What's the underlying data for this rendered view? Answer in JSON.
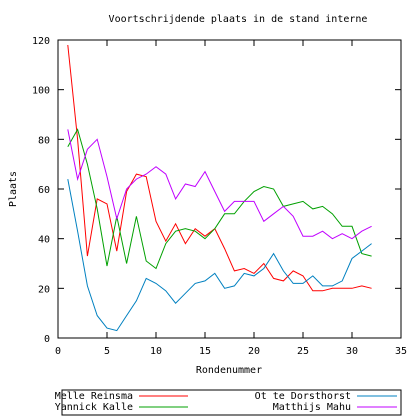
{
  "chart_data": {
    "type": "line",
    "title": "Voortschrijdende plaats in de stand interne",
    "xlabel": "Rondenummer",
    "ylabel": "Plaats",
    "xlim": [
      0,
      35
    ],
    "ylim": [
      0,
      120
    ],
    "xticks": [
      0,
      5,
      10,
      15,
      20,
      25,
      30,
      35
    ],
    "yticks": [
      0,
      20,
      40,
      60,
      80,
      100,
      120
    ],
    "grid": false,
    "legend_position": "bottom",
    "x": [
      1,
      2,
      3,
      4,
      5,
      6,
      7,
      8,
      9,
      10,
      11,
      12,
      13,
      14,
      15,
      16,
      17,
      18,
      19,
      20,
      21,
      22,
      23,
      24,
      25,
      26,
      27,
      28,
      29,
      30,
      31,
      32
    ],
    "series": [
      {
        "name": "Melle Reinsma",
        "color": "#ff0000",
        "values": [
          118,
          80,
          33,
          56,
          54,
          35,
          59,
          66,
          65,
          47,
          39,
          46,
          38,
          44,
          41,
          44,
          36,
          27,
          28,
          26,
          30,
          24,
          23,
          27,
          25,
          19,
          19,
          20,
          20,
          20,
          21,
          20
        ]
      },
      {
        "name": "Yannick Kalle",
        "color": "#00a000",
        "values": [
          77,
          84,
          70,
          52,
          29,
          49,
          30,
          49,
          31,
          28,
          38,
          43,
          44,
          43,
          40,
          44,
          50,
          50,
          55,
          59,
          61,
          60,
          53,
          54,
          55,
          52,
          53,
          50,
          45,
          45,
          34,
          33
        ]
      },
      {
        "name": "Ot te Dorsthorst",
        "color": "#0080c0",
        "values": [
          64,
          43,
          21,
          9,
          4,
          3,
          9,
          15,
          24,
          22,
          19,
          14,
          18,
          22,
          23,
          26,
          20,
          21,
          26,
          25,
          28,
          34,
          27,
          22,
          22,
          25,
          21,
          21,
          23,
          32,
          35,
          38
        ]
      },
      {
        "name": "Matthijs Mahu",
        "color": "#c000ff",
        "values": [
          84,
          64,
          76,
          80,
          65,
          48,
          60,
          64,
          66,
          69,
          66,
          56,
          62,
          61,
          67,
          59,
          51,
          55,
          55,
          55,
          47,
          50,
          53,
          49,
          41,
          41,
          43,
          40,
          42,
          40,
          43,
          45
        ]
      }
    ]
  }
}
